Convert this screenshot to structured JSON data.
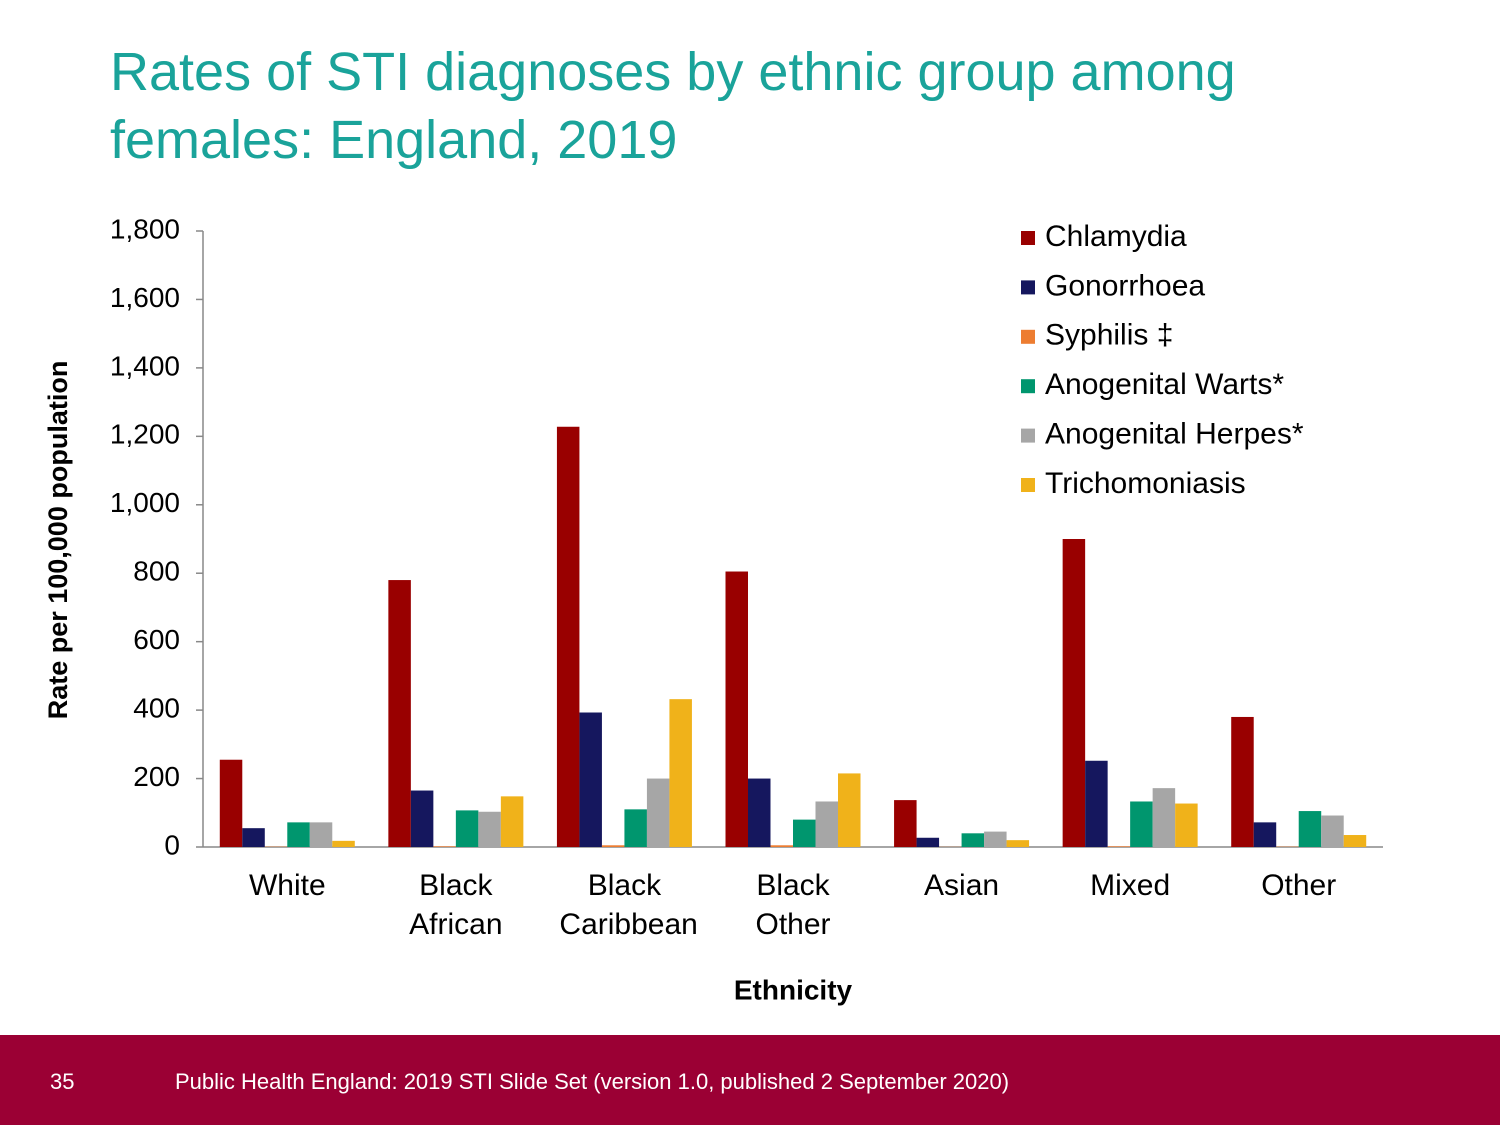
{
  "chart_data": {
    "type": "bar",
    "title": "Rates of STI diagnoses by ethnic group among females: England, 2019",
    "x_label": "Ethnicity",
    "y_label": "Rate per 100,000 population",
    "categories": [
      "White",
      "Black African",
      "Black Caribbean",
      "Black Other",
      "Asian",
      "Mixed",
      "Other"
    ],
    "series": [
      {
        "name": "Chlamydia",
        "color": "#990000",
        "values": [
          255,
          780,
          1228,
          805,
          137,
          900,
          380
        ]
      },
      {
        "name": "Gonorrhoea",
        "color": "#15175e",
        "values": [
          55,
          165,
          393,
          200,
          27,
          252,
          72
        ]
      },
      {
        "name": "Syphilis ‡",
        "color": "#ed7d31",
        "values": [
          1,
          2,
          5,
          5,
          0.5,
          2,
          1
        ]
      },
      {
        "name": "Anogenital Warts*",
        "color": "#00966e",
        "values": [
          72,
          107,
          110,
          80,
          40,
          133,
          105
        ]
      },
      {
        "name": "Anogenital Herpes*",
        "color": "#a6a6a6",
        "values": [
          72,
          103,
          200,
          133,
          45,
          172,
          92
        ]
      },
      {
        "name": "Trichomoniasis",
        "color": "#f0b21a",
        "values": [
          18,
          148,
          432,
          215,
          20,
          127,
          35
        ]
      }
    ],
    "ylim": [
      0,
      1800
    ],
    "yticks": [
      0,
      200,
      400,
      600,
      800,
      {
        "value": 1000,
        "label": "1,000"
      },
      {
        "value": 1200,
        "label": "1,200"
      },
      {
        "value": 1400,
        "label": "1,400"
      },
      {
        "value": 1600,
        "label": "1,600"
      },
      {
        "value": 1800,
        "label": "1,800"
      }
    ],
    "grid": false,
    "legend": "upper right"
  },
  "footer": {
    "page_number": "35",
    "source": "Public Health England: 2019 STI Slide Set (version 1.0, published 2 September 2020)"
  }
}
